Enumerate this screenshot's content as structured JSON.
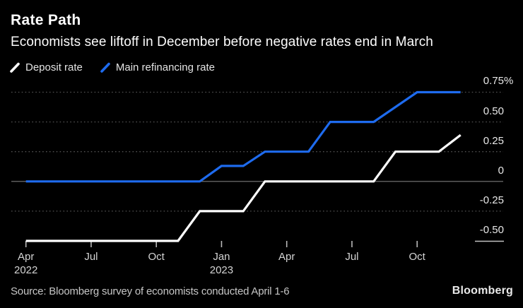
{
  "header": {
    "title": "Rate Path",
    "subtitle": "Economists see liftoff in December before negative rates end in March"
  },
  "legend": [
    {
      "label": "Deposit rate",
      "color": "#ffffff"
    },
    {
      "label": "Main refinancing rate",
      "color": "#1e6bee"
    }
  ],
  "footer": {
    "source": "Source: Bloomberg survey of economists conducted April 1-6",
    "brand": "Bloomberg"
  },
  "chart_data": {
    "type": "line",
    "title": "Rate Path",
    "subtitle": "Economists see liftoff in December before negative rates end in March",
    "x_unit": "months since April 2022",
    "x_range": [
      0,
      20
    ],
    "ylim": [
      -0.5,
      0.75
    ],
    "grid": "horizontal dotted, solid line at 0",
    "legend_position": "top-left",
    "background": "#000000",
    "colors": {
      "grid_dotted": "#525252",
      "zero_line": "#7a7a7a",
      "baseline_segment": "#c2c2c2",
      "tick": "#b9b9b9"
    },
    "y_ticks": [
      {
        "value": 0.75,
        "label": "0.75",
        "suffix": "%",
        "style": "dotted"
      },
      {
        "value": 0.5,
        "label": "0.50",
        "style": "dotted"
      },
      {
        "value": 0.25,
        "label": "0.25",
        "style": "dotted"
      },
      {
        "value": 0,
        "label": "0",
        "style": "solid"
      },
      {
        "value": -0.25,
        "label": "-0.25",
        "style": "dotted"
      },
      {
        "value": -0.5,
        "label": "-0.50",
        "style": "label-underline"
      }
    ],
    "x_ticks": [
      {
        "month": 0,
        "label": "Apr",
        "year": "2022"
      },
      {
        "month": 3,
        "label": "Jul"
      },
      {
        "month": 6,
        "label": "Oct"
      },
      {
        "month": 9,
        "label": "Jan",
        "year": "2023"
      },
      {
        "month": 12,
        "label": "Apr"
      },
      {
        "month": 15,
        "label": "Jul"
      },
      {
        "month": 18,
        "label": "Oct"
      }
    ],
    "series": [
      {
        "name": "Deposit rate",
        "color": "#ffffff",
        "points": [
          [
            0,
            -0.5
          ],
          [
            7,
            -0.5
          ],
          [
            8,
            -0.25
          ],
          [
            10,
            -0.25
          ],
          [
            11,
            0
          ],
          [
            16,
            0
          ],
          [
            17,
            0.25
          ],
          [
            19,
            0.25
          ],
          [
            20,
            0.39
          ]
        ]
      },
      {
        "name": "Main refinancing rate",
        "color": "#1e6bee",
        "points": [
          [
            0,
            0
          ],
          [
            8,
            0
          ],
          [
            9,
            0.13
          ],
          [
            10,
            0.13
          ],
          [
            11,
            0.25
          ],
          [
            13,
            0.25
          ],
          [
            14,
            0.5
          ],
          [
            16,
            0.5
          ],
          [
            18,
            0.75
          ],
          [
            20,
            0.75
          ]
        ]
      }
    ]
  }
}
